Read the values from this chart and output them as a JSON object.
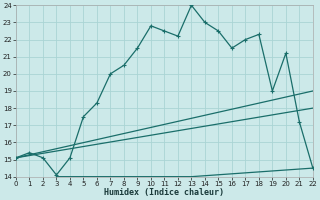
{
  "xlabel": "Humidex (Indice chaleur)",
  "bg_color": "#cce9e9",
  "grid_color": "#aad4d4",
  "line_color": "#1a6e6a",
  "xlim": [
    0,
    22
  ],
  "ylim": [
    14,
    24
  ],
  "xticks": [
    0,
    1,
    2,
    3,
    4,
    5,
    6,
    7,
    8,
    9,
    10,
    11,
    12,
    13,
    14,
    15,
    16,
    17,
    18,
    19,
    20,
    21,
    22
  ],
  "yticks": [
    14,
    15,
    16,
    17,
    18,
    19,
    20,
    21,
    22,
    23,
    24
  ],
  "main_x": [
    0,
    1,
    2,
    3,
    4,
    5,
    6,
    7,
    8,
    9,
    10,
    11,
    12,
    13,
    14,
    15,
    16,
    17,
    18,
    19,
    20,
    21,
    22
  ],
  "main_y": [
    15.1,
    15.4,
    15.1,
    14.1,
    15.1,
    17.5,
    18.3,
    20.0,
    20.5,
    21.5,
    22.8,
    22.5,
    22.2,
    24.0,
    23.0,
    22.5,
    21.5,
    22.0,
    22.3,
    19.0,
    21.2,
    17.2,
    14.5
  ],
  "line2_x": [
    0,
    22
  ],
  "line2_y": [
    15.1,
    19.0
  ],
  "line3_x": [
    0,
    22
  ],
  "line3_y": [
    15.1,
    18.0
  ],
  "line4_x": [
    3,
    13,
    22
  ],
  "line4_y": [
    14.0,
    14.0,
    14.5
  ]
}
